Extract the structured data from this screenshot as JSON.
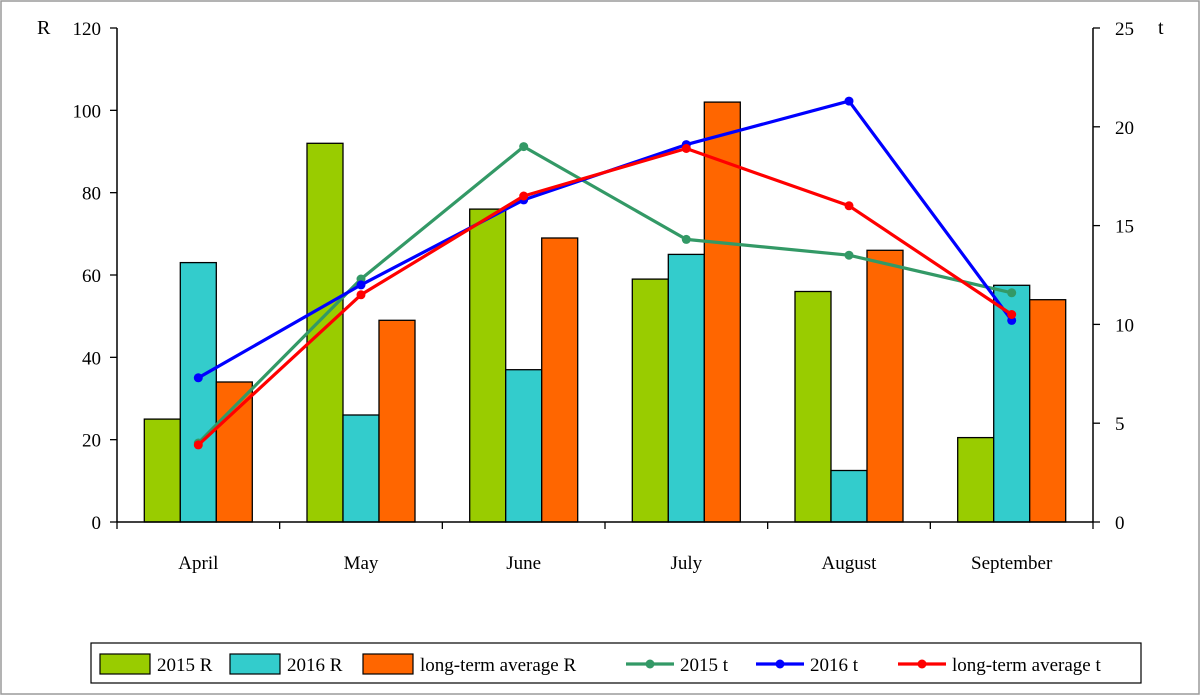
{
  "chart_data": {
    "type": "bar",
    "categories": [
      "April",
      "May",
      "June",
      "July",
      "August",
      "September"
    ],
    "series": [
      {
        "name": "2015 R",
        "kind": "bar",
        "axis": "left",
        "color": "#99cc00",
        "values": [
          25,
          92,
          76,
          59,
          56,
          20.5
        ]
      },
      {
        "name": "2016 R",
        "kind": "bar",
        "axis": "left",
        "color": "#33cccc",
        "values": [
          63,
          26,
          37,
          65,
          12.5,
          57.5
        ]
      },
      {
        "name": "long-term average  R",
        "kind": "bar",
        "axis": "left",
        "color": "#ff6600",
        "values": [
          34,
          49,
          69,
          102,
          66,
          54
        ]
      },
      {
        "name": "2015 t",
        "kind": "line",
        "axis": "right",
        "color": "#339966",
        "values": [
          4,
          12.3,
          19,
          14.3,
          13.5,
          11.6
        ]
      },
      {
        "name": "2016 t",
        "kind": "line",
        "axis": "right",
        "color": "#0000ff",
        "values": [
          7.3,
          12,
          16.3,
          19.1,
          21.3,
          10.2
        ]
      },
      {
        "name": "long-term average t",
        "kind": "line",
        "axis": "right",
        "color": "#ff0000",
        "values": [
          3.9,
          11.5,
          16.5,
          18.9,
          16,
          10.5
        ]
      }
    ],
    "ylabel": "R",
    "y2label": "t",
    "ylim": [
      0,
      120
    ],
    "y2lim": [
      0,
      25
    ],
    "yticks": [
      0,
      20,
      40,
      60,
      80,
      100,
      120
    ],
    "y2ticks": [
      0,
      5,
      10,
      15,
      20,
      25
    ],
    "grid": false,
    "legend_position": "bottom"
  }
}
